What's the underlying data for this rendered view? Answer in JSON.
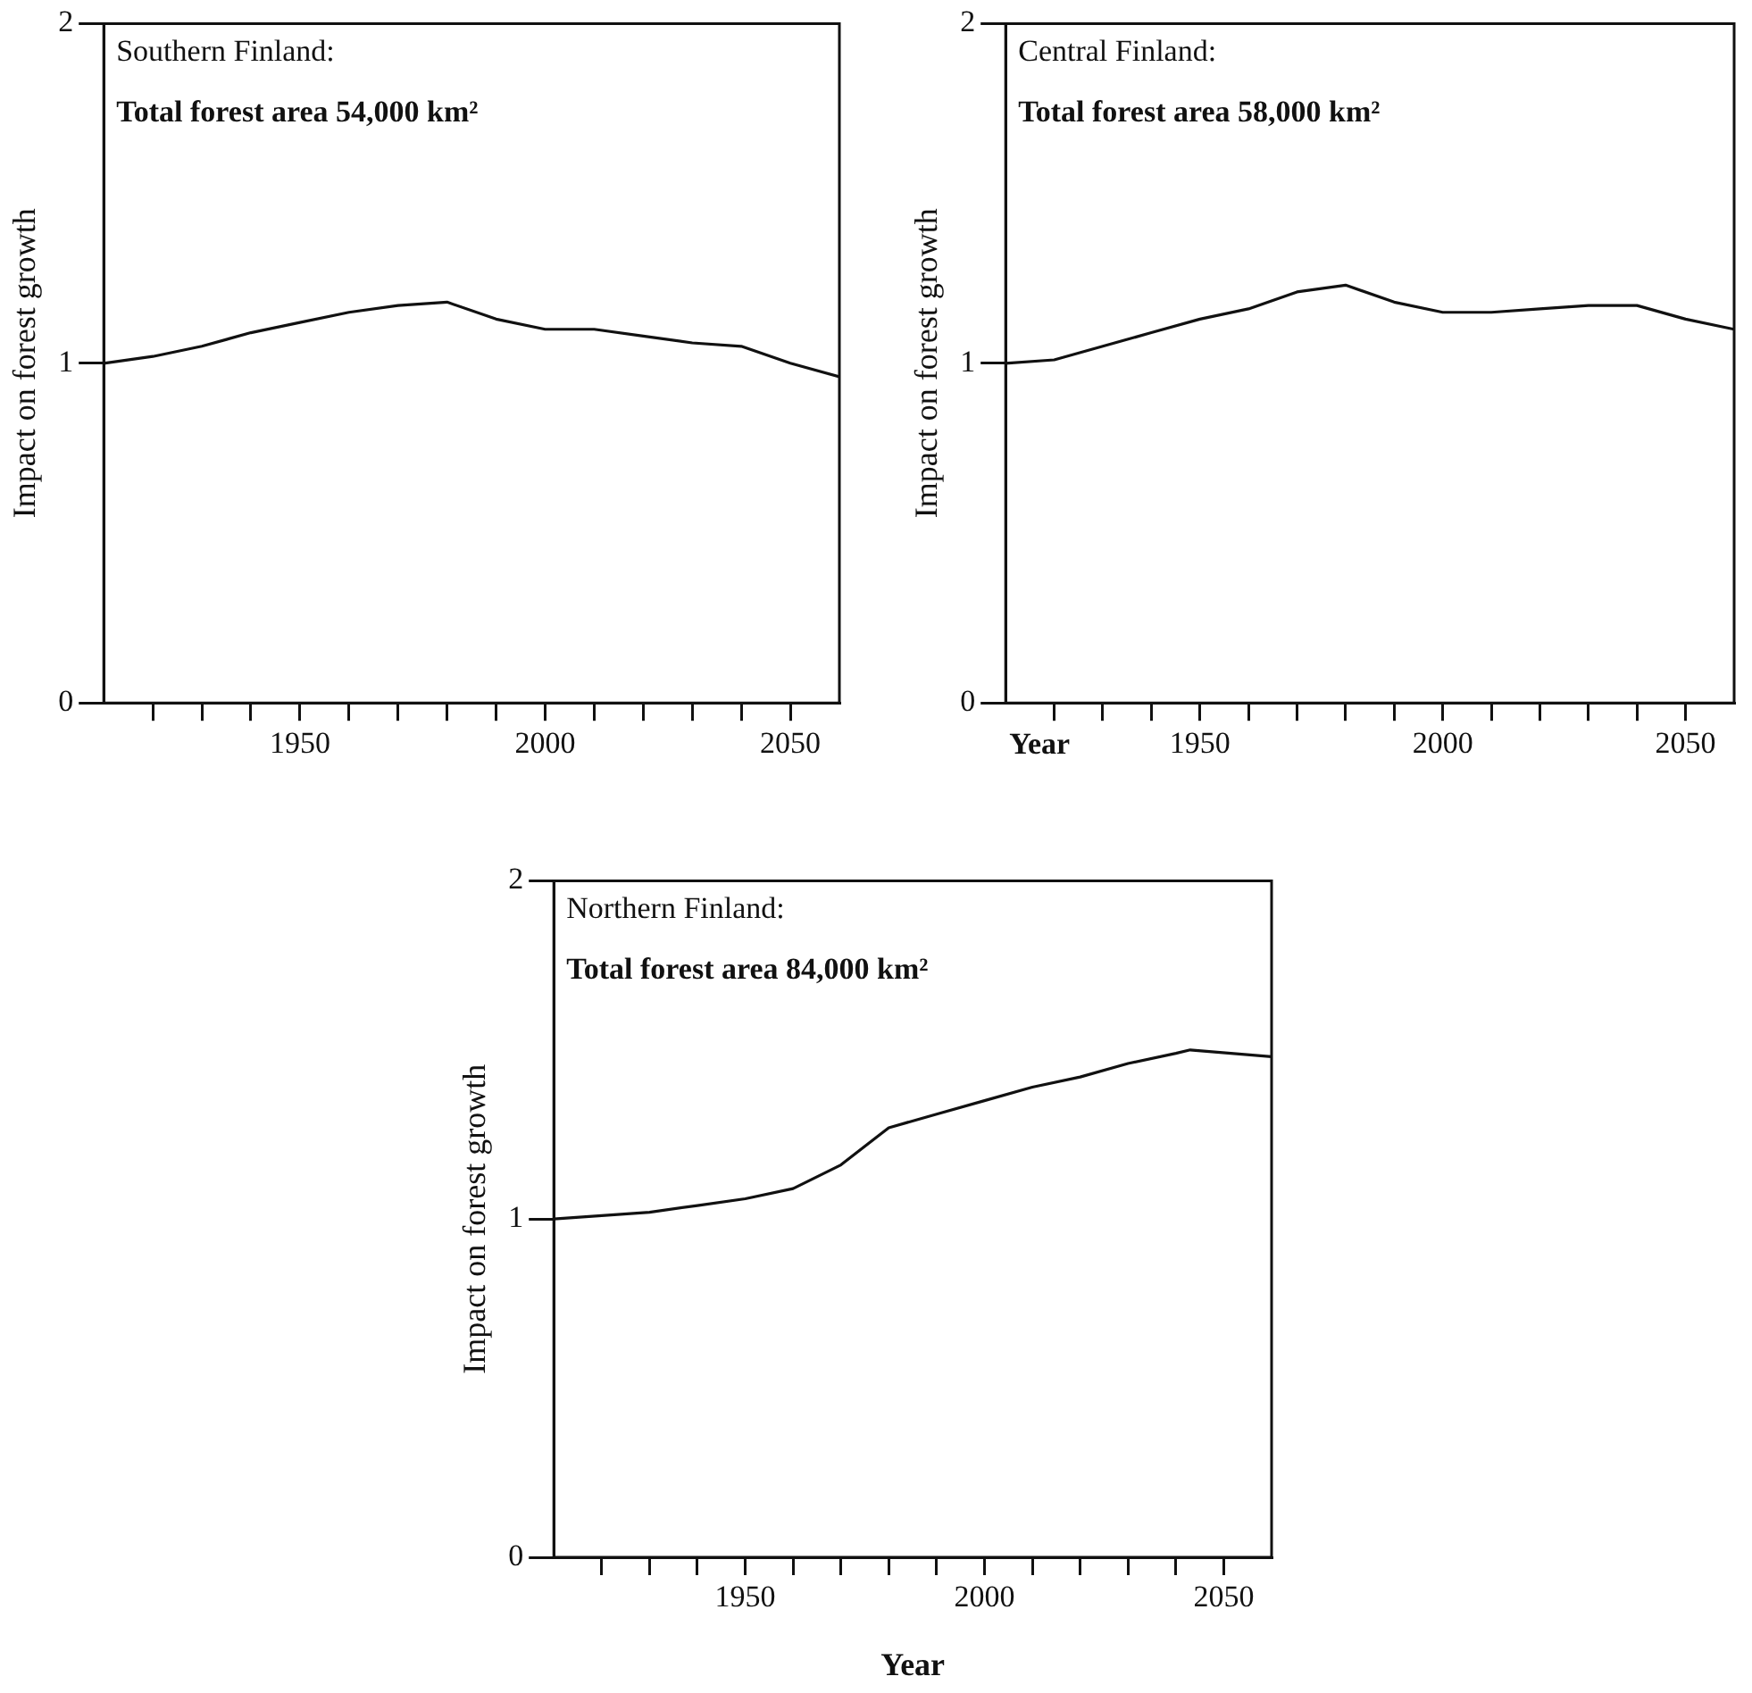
{
  "chart_data": [
    {
      "type": "line",
      "annotations": [
        "Southern Finland:",
        "Total forest area 54,000 km²"
      ],
      "ylabel": "Impact on forest growth",
      "x": [
        1910,
        1920,
        1930,
        1940,
        1950,
        1960,
        1970,
        1980,
        1990,
        2000,
        2010,
        2020,
        2030,
        2040,
        2050,
        2060
      ],
      "series": [
        {
          "color": "#111111",
          "values": [
            1.0,
            1.02,
            1.05,
            1.09,
            1.12,
            1.15,
            1.17,
            1.18,
            1.13,
            1.1,
            1.1,
            1.08,
            1.06,
            1.05,
            1.0,
            0.96
          ]
        }
      ],
      "xlim": [
        1910,
        2060
      ],
      "xticks": [
        {
          "value": 1920,
          "label": null
        },
        {
          "value": 1930,
          "label": null
        },
        {
          "value": 1940,
          "label": null
        },
        1950,
        {
          "value": 1960,
          "label": null
        },
        {
          "value": 1970,
          "label": null
        },
        {
          "value": 1980,
          "label": null
        },
        {
          "value": 1990,
          "label": null
        },
        2000,
        {
          "value": 2010,
          "label": null
        },
        {
          "value": 2020,
          "label": null
        },
        {
          "value": 2030,
          "label": null
        },
        {
          "value": 2040,
          "label": null
        },
        2050
      ],
      "ylim": [
        0,
        2
      ],
      "yticks": [
        0,
        1,
        2
      ],
      "grid": false,
      "legend": false
    },
    {
      "type": "line",
      "annotations": [
        "Central Finland:",
        "Total forest area 58,000 km²"
      ],
      "xlabel": "Year",
      "ylabel": "Impact on forest growth",
      "x": [
        1910,
        1920,
        1930,
        1940,
        1950,
        1960,
        1970,
        1980,
        1990,
        2000,
        2010,
        2020,
        2030,
        2040,
        2050,
        2060
      ],
      "series": [
        {
          "color": "#111111",
          "values": [
            1.0,
            1.01,
            1.05,
            1.09,
            1.13,
            1.16,
            1.21,
            1.23,
            1.18,
            1.15,
            1.15,
            1.16,
            1.17,
            1.17,
            1.13,
            1.1
          ]
        }
      ],
      "xlim": [
        1910,
        2060
      ],
      "xticks": [
        {
          "value": 1920,
          "label": null
        },
        {
          "value": 1930,
          "label": null
        },
        {
          "value": 1940,
          "label": null
        },
        1950,
        {
          "value": 1960,
          "label": null
        },
        {
          "value": 1970,
          "label": null
        },
        {
          "value": 1980,
          "label": null
        },
        {
          "value": 1990,
          "label": null
        },
        2000,
        {
          "value": 2010,
          "label": null
        },
        {
          "value": 2020,
          "label": null
        },
        {
          "value": 2030,
          "label": null
        },
        {
          "value": 2040,
          "label": null
        },
        2050
      ],
      "ylim": [
        0,
        2
      ],
      "yticks": [
        0,
        1,
        2
      ],
      "grid": false,
      "legend": false
    },
    {
      "type": "line",
      "annotations": [
        "Northern Finland:",
        "Total forest area 84,000 km²"
      ],
      "xlabel": "Year",
      "ylabel": "Impact on forest growth",
      "x": [
        1910,
        1920,
        1930,
        1940,
        1950,
        1960,
        1970,
        1980,
        1990,
        2000,
        2010,
        2020,
        2030,
        2040,
        2043,
        2060
      ],
      "series": [
        {
          "color": "#111111",
          "values": [
            1.0,
            1.01,
            1.02,
            1.04,
            1.06,
            1.09,
            1.16,
            1.27,
            1.31,
            1.35,
            1.39,
            1.42,
            1.46,
            1.49,
            1.5,
            1.48
          ]
        }
      ],
      "xlim": [
        1910,
        2060
      ],
      "xticks": [
        {
          "value": 1920,
          "label": null
        },
        {
          "value": 1930,
          "label": null
        },
        {
          "value": 1940,
          "label": null
        },
        1950,
        {
          "value": 1960,
          "label": null
        },
        {
          "value": 1970,
          "label": null
        },
        {
          "value": 1980,
          "label": null
        },
        {
          "value": 1990,
          "label": null
        },
        2000,
        {
          "value": 2010,
          "label": null
        },
        {
          "value": 2020,
          "label": null
        },
        {
          "value": 2030,
          "label": null
        },
        {
          "value": 2040,
          "label": null
        },
        2050
      ],
      "ylim": [
        0,
        2
      ],
      "yticks": [
        0,
        1,
        2
      ],
      "grid": false,
      "legend": false
    }
  ]
}
